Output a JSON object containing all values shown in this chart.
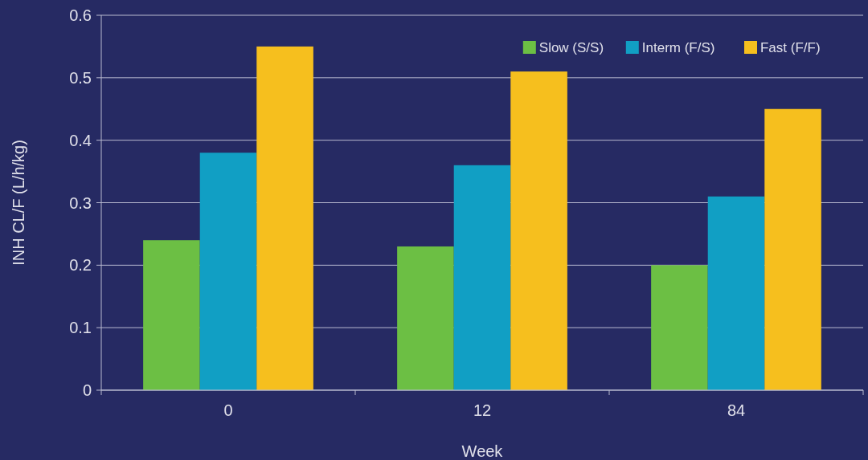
{
  "chart_data": {
    "type": "bar",
    "xlabel": "Week",
    "ylabel": "INH CL/F (L/h/kg)",
    "categories": [
      "0",
      "12",
      "84"
    ],
    "series": [
      {
        "name": "Slow (S/S)",
        "color": "#6cbf44",
        "values": [
          0.24,
          0.23,
          0.2
        ]
      },
      {
        "name": "Interm (F/S)",
        "color": "#119fc4",
        "values": [
          0.38,
          0.36,
          0.31
        ]
      },
      {
        "name": "Fast (F/F)",
        "color": "#f6bf1e",
        "values": [
          0.55,
          0.51,
          0.45
        ]
      }
    ],
    "ylim": [
      0,
      0.6
    ],
    "yticks": [
      0,
      0.1,
      0.2,
      0.3,
      0.4,
      0.5,
      0.6
    ],
    "grid": "y",
    "legend": "top right"
  }
}
